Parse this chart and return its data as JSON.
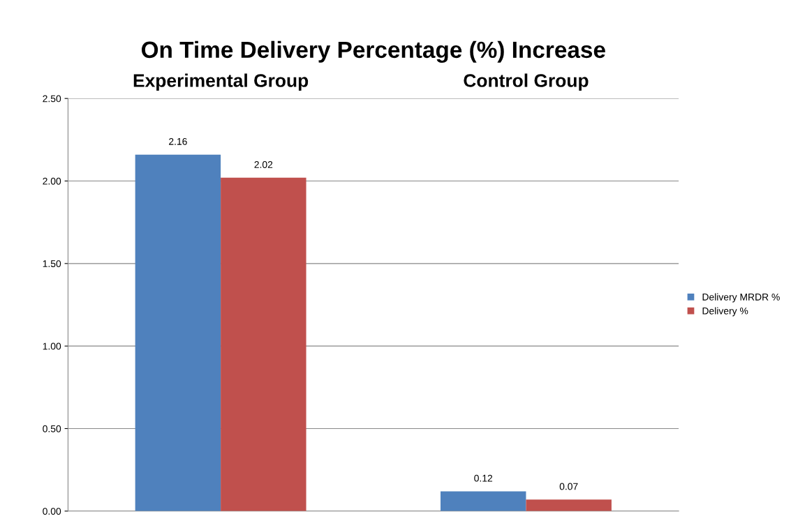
{
  "chart_data": {
    "type": "bar",
    "title": "On Time Delivery Percentage (%) Increase",
    "categories": [
      "Experimental Group",
      "Control Group"
    ],
    "series": [
      {
        "name": "Delivery MRDR %",
        "color": "#4f81bd",
        "values": [
          2.16,
          0.12
        ]
      },
      {
        "name": "Delivery %",
        "color": "#c0504d",
        "values": [
          2.02,
          0.07
        ]
      }
    ],
    "ylim": [
      0,
      2.5
    ],
    "yticks": [
      {
        "value": 0,
        "label": "0.00"
      },
      {
        "value": 0.5,
        "label": "0.50"
      },
      {
        "value": 1,
        "label": "1.00"
      },
      {
        "value": 1.5,
        "label": "1.50"
      },
      {
        "value": 2,
        "label": "2.00"
      },
      {
        "value": 2.5,
        "label": "2.50"
      }
    ],
    "data_labels": true,
    "grid": "y",
    "legend": "right"
  }
}
